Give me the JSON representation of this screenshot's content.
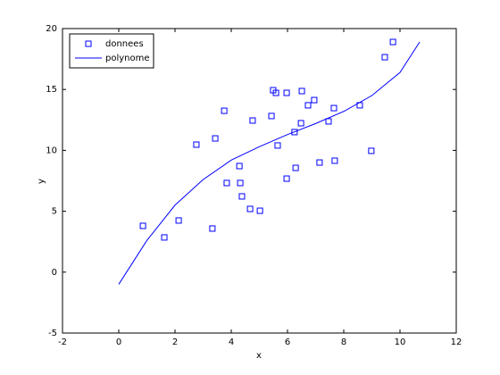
{
  "chart_data": {
    "type": "scatter",
    "xlabel": "x",
    "ylabel": "y",
    "xlim": [
      -2,
      12
    ],
    "xticks": [
      -2,
      0,
      2,
      4,
      6,
      8,
      10,
      12
    ],
    "ylim": [
      -5,
      20
    ],
    "yticks": [
      -5,
      0,
      5,
      10,
      15,
      20
    ],
    "legend": "upper left",
    "series": [
      {
        "name": "donnees",
        "type": "scatter",
        "color": "#0000ff",
        "x": [
          0.86,
          1.62,
          2.13,
          2.76,
          3.33,
          3.43,
          3.75,
          3.84,
          4.29,
          4.32,
          4.38,
          4.67,
          4.76,
          5.02,
          5.43,
          5.49,
          5.59,
          5.65,
          5.97,
          5.97,
          6.25,
          6.29,
          6.48,
          6.51,
          6.73,
          6.95,
          7.14,
          7.46,
          7.65,
          7.68,
          8.57,
          8.98,
          9.46,
          9.75
        ],
        "values": [
          3.8,
          2.85,
          4.24,
          10.47,
          3.58,
          10.98,
          13.25,
          7.32,
          8.71,
          7.32,
          6.22,
          5.19,
          12.45,
          5.04,
          12.82,
          14.94,
          14.72,
          10.4,
          14.72,
          7.68,
          11.5,
          8.56,
          12.23,
          14.87,
          13.7,
          14.13,
          9.0,
          12.38,
          13.47,
          9.15,
          13.7,
          9.96,
          17.65,
          18.9
        ]
      },
      {
        "name": "polynome",
        "type": "line",
        "color": "#0000ff",
        "x": [
          0,
          1,
          2,
          3,
          4,
          5,
          6,
          7,
          8,
          9,
          10,
          10.7
        ],
        "values": [
          -1,
          2.6,
          5.5,
          7.6,
          9.2,
          10.3,
          11.3,
          12.2,
          13.2,
          14.5,
          16.4,
          18.9
        ]
      }
    ]
  }
}
